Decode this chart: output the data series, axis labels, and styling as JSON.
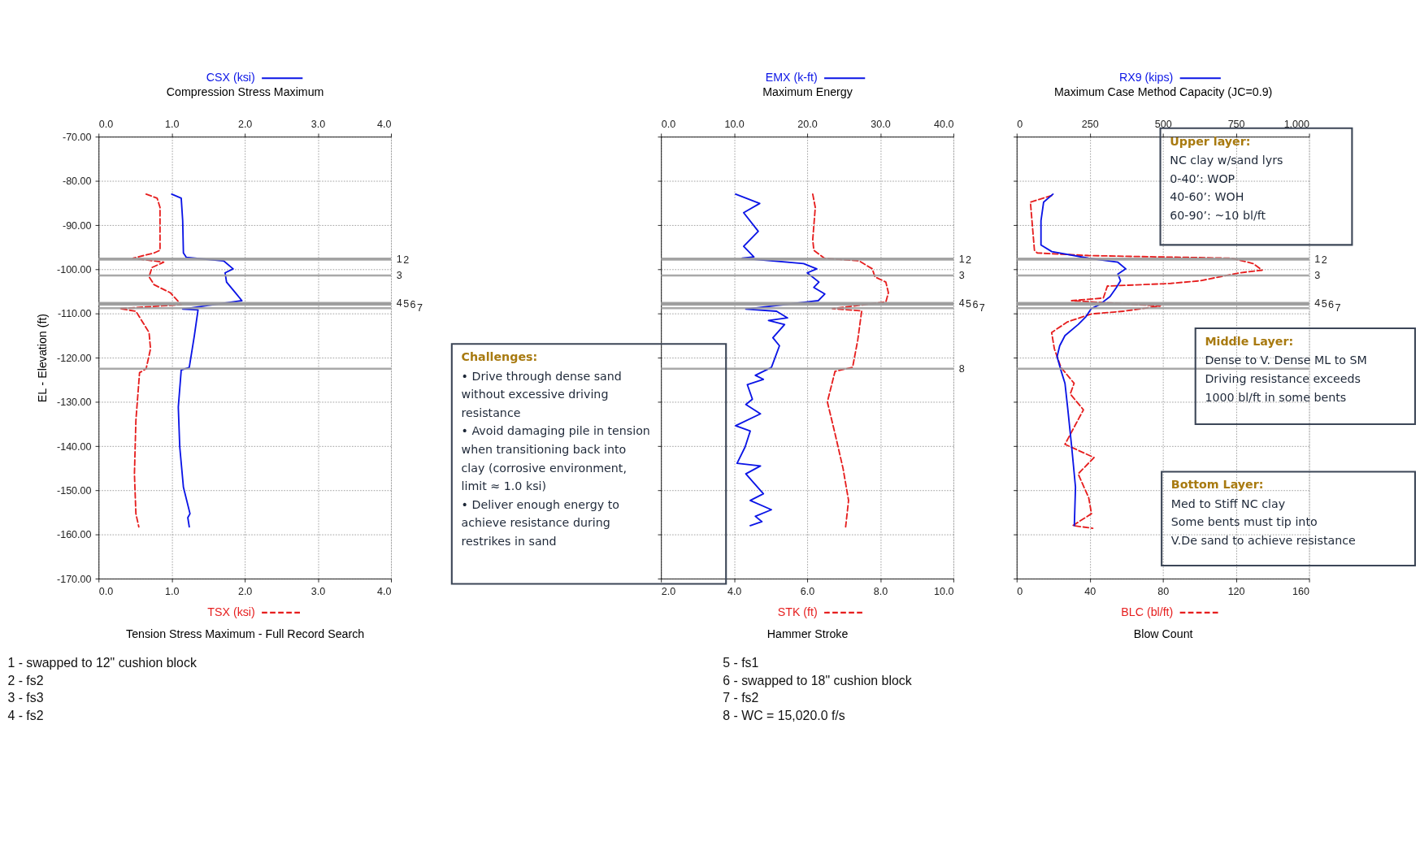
{
  "chart_data": [
    {
      "type": "line",
      "ylabel": "EL - Elevation (ft)",
      "xlabel": "Tension Stress Maximum - Full Record Search",
      "x2label": "Compression Stress Maximum",
      "xlim": [
        0,
        4
      ],
      "xticks": [
        {
          "value": 0,
          "label": "0.0"
        },
        {
          "value": 1,
          "label": "1.0"
        },
        {
          "value": 2,
          "label": "2.0"
        },
        {
          "value": 3,
          "label": "3.0"
        },
        {
          "value": 4,
          "label": "4.0"
        }
      ],
      "x2lim": [
        0,
        4
      ],
      "x2ticks": [
        {
          "value": 0,
          "label": "0.0"
        },
        {
          "value": 1,
          "label": "1.0"
        },
        {
          "value": 2,
          "label": "2.0"
        },
        {
          "value": 3,
          "label": "3.0"
        },
        {
          "value": 4,
          "label": "4.0"
        }
      ],
      "ylim": [
        -170,
        -70
      ],
      "yticks": [
        {
          "value": -70,
          "label": "-70.00"
        },
        {
          "value": -80,
          "label": "-80.00"
        },
        {
          "value": -90,
          "label": "-90.00"
        },
        {
          "value": -100,
          "label": "-100.00"
        },
        {
          "value": -110,
          "label": "-110.00"
        },
        {
          "value": -120,
          "label": "-120.00"
        },
        {
          "value": -130,
          "label": "-130.00"
        },
        {
          "value": -140,
          "label": "-140.00"
        },
        {
          "value": -150,
          "label": "-150.00"
        },
        {
          "value": -160,
          "label": "-160.00"
        },
        {
          "value": -170,
          "label": "-170.00"
        }
      ],
      "grid": true,
      "legend": "top",
      "marker": "none",
      "series": [
        {
          "name": "CSX (ksi)",
          "color": "#0a14e6",
          "axis": "x2",
          "line_style": "solid",
          "x": [
            1.0,
            1.13,
            1.15,
            1.16,
            1.2,
            1.71,
            1.84,
            1.73,
            1.75,
            1.87,
            1.96,
            1.15,
            1.36,
            1.31,
            1.24,
            1.13,
            1.09,
            1.11,
            1.16,
            1.25,
            1.22,
            1.24
          ],
          "values": [
            -83.0,
            -83.9,
            -89.0,
            -96.3,
            -97.3,
            -98.1,
            -99.9,
            -100.8,
            -102.9,
            -105.3,
            -107.1,
            -109.0,
            -109.2,
            -115.0,
            -122.2,
            -122.8,
            -131.2,
            -140.2,
            -149.3,
            -155.3,
            -156.2,
            -158.3
          ]
        },
        {
          "name": "TSX (ksi)",
          "color": "#e61e1e",
          "line_style": "dashed",
          "x": [
            0.65,
            0.8,
            0.84,
            0.84,
            0.76,
            0.47,
            0.89,
            0.73,
            0.69,
            0.76,
            0.98,
            1.13,
            0.29,
            0.51,
            0.69,
            0.71,
            0.65,
            0.56,
            0.51,
            0.49,
            0.51,
            0.55
          ],
          "values": [
            -83.0,
            -83.9,
            -86.0,
            -95.7,
            -96.3,
            -97.5,
            -98.4,
            -99.6,
            -101.7,
            -103.5,
            -105.3,
            -108.0,
            -108.9,
            -109.5,
            -114.3,
            -118.0,
            -122.5,
            -123.4,
            -134.2,
            -146.3,
            -155.3,
            -158.3
          ]
        }
      ],
      "ref_lines": [
        {
          "axis": "y",
          "value": -97.6
        },
        {
          "axis": "y",
          "value": -97.8
        },
        {
          "axis": "y",
          "value": -101.4
        },
        {
          "axis": "y",
          "value": -107.6
        },
        {
          "axis": "y",
          "value": -107.8
        },
        {
          "axis": "y",
          "value": -108.0
        },
        {
          "axis": "y",
          "value": -108.8
        },
        {
          "axis": "y",
          "value": -122.5
        }
      ],
      "annotations": [
        "1 - swapped to 12\" cushion block",
        "2 - fs2",
        "3 - fs3",
        "4 - fs2",
        {
          "text": "1",
          "x": 4,
          "y": -97.6
        },
        {
          "text": "2",
          "x": 4,
          "y": -97.8
        },
        {
          "text": "3",
          "x": 4,
          "y": -101.4
        },
        {
          "text": "4",
          "x": 4,
          "y": -107.6
        },
        {
          "text": "5",
          "x": 4,
          "y": -107.8
        },
        {
          "text": "6",
          "x": 4,
          "y": -108.0
        },
        {
          "text": "7",
          "x": 4,
          "y": -108.8
        }
      ]
    },
    {
      "type": "line",
      "xlabel": "Hammer Stroke",
      "x2label": "Maximum Energy",
      "xlim": [
        2,
        10
      ],
      "xticks": [
        {
          "value": 2,
          "label": "2.0"
        },
        {
          "value": 4,
          "label": "4.0"
        },
        {
          "value": 6,
          "label": "6.0"
        },
        {
          "value": 8,
          "label": "8.0"
        },
        {
          "value": 10,
          "label": "10.0"
        }
      ],
      "x2lim": [
        0,
        40
      ],
      "x2ticks": [
        {
          "value": 0,
          "label": "0.0"
        },
        {
          "value": 10,
          "label": "10.0"
        },
        {
          "value": 20,
          "label": "20.0"
        },
        {
          "value": 30,
          "label": "30.0"
        },
        {
          "value": 40,
          "label": "40.0"
        }
      ],
      "ylim": [
        -170,
        -70
      ],
      "yticks": [
        -70,
        -80,
        -90,
        -100,
        -110,
        -120,
        -130,
        -140,
        -150,
        -160,
        -170
      ],
      "tick_labels": "x",
      "grid": true,
      "legend": "top",
      "marker": "none",
      "series": [
        {
          "name": "EMX (k-ft)",
          "color": "#0a14e6",
          "axis": "x2",
          "line_style": "solid",
          "x": [
            10.2,
            13.5,
            11.3,
            13.3,
            11.3,
            12.7,
            11.1,
            19.5,
            21.3,
            20.0,
            21.6,
            20.9,
            22.4,
            21.5,
            11.6,
            15.8,
            17.3,
            14.7,
            16.9,
            15.3,
            16.2,
            15.1,
            12.9,
            14.0,
            11.8,
            12.5,
            11.6,
            13.6,
            10.2,
            12.2,
            11.5,
            10.4,
            13.6,
            11.6,
            14.0,
            12.2,
            15.1,
            12.9,
            13.8,
            12.2
          ],
          "values": [
            -83.0,
            -85.1,
            -87.2,
            -91.4,
            -94.8,
            -97.2,
            -97.5,
            -98.7,
            -99.9,
            -100.8,
            -102.9,
            -104.1,
            -105.6,
            -107.1,
            -109.0,
            -109.5,
            -111.0,
            -111.6,
            -112.5,
            -115.5,
            -117.3,
            -122.2,
            -124.0,
            -124.9,
            -126.1,
            -129.4,
            -130.6,
            -132.7,
            -135.4,
            -136.6,
            -140.2,
            -143.9,
            -144.5,
            -146.3,
            -150.8,
            -152.3,
            -154.4,
            -155.9,
            -157.1,
            -158.0
          ]
        },
        {
          "name": "STK (ft)",
          "color": "#e61e1e",
          "line_style": "dashed",
          "x": [
            6.15,
            6.22,
            6.15,
            6.18,
            6.47,
            7.42,
            7.78,
            7.85,
            8.15,
            8.22,
            8.15,
            6.69,
            7.49,
            7.38,
            7.24,
            6.76,
            6.55,
            6.76,
            6.98,
            7.13,
            7.05
          ],
          "values": [
            -83.0,
            -86.0,
            -93.3,
            -95.7,
            -97.5,
            -98.1,
            -99.9,
            -101.7,
            -102.9,
            -105.3,
            -107.4,
            -108.9,
            -109.4,
            -116.1,
            -122.2,
            -123.1,
            -130.0,
            -137.2,
            -145.1,
            -152.3,
            -158.3
          ]
        }
      ],
      "ref_lines": [
        {
          "axis": "y",
          "value": -97.6
        },
        {
          "axis": "y",
          "value": -97.8
        },
        {
          "axis": "y",
          "value": -101.4
        },
        {
          "axis": "y",
          "value": -107.6
        },
        {
          "axis": "y",
          "value": -107.8
        },
        {
          "axis": "y",
          "value": -108.0
        },
        {
          "axis": "y",
          "value": -108.8
        },
        {
          "axis": "y",
          "value": -122.5
        }
      ],
      "annotations": [
        {
          "text": "1",
          "x": 10,
          "y": -97.6
        },
        {
          "text": "2",
          "x": 10,
          "y": -97.8
        },
        {
          "text": "3",
          "x": 10,
          "y": -101.4
        },
        {
          "text": "4",
          "x": 10,
          "y": -107.6
        },
        {
          "text": "5",
          "x": 10,
          "y": -107.8
        },
        {
          "text": "6",
          "x": 10,
          "y": -108.0
        },
        {
          "text": "7",
          "x": 10,
          "y": -108.8
        },
        {
          "text": "8",
          "x": 10,
          "y": -122.5
        },
        "Challenges:\n• Drive through dense sand\n   without excessive driving\n   resistance\n• Avoid damaging pile in tension\n   when transitioning back into\n   clay (corrosive environment,\n   limit ≈ 1.0 ksi)\n• Deliver enough energy to\n   achieve resistance during\n   restrikes in sand",
        "5 - fs1",
        "6 - swapped to 18\" cushion block",
        "7 - fs2",
        "8 - WC = 15,020.0 f/s"
      ]
    },
    {
      "type": "line",
      "xlabel": "Blow Count",
      "x2label": "Maximum Case Method Capacity (JC=0.9)",
      "xlim": [
        0,
        160
      ],
      "xticks": [
        0,
        40,
        80,
        120,
        160
      ],
      "x2lim": [
        0,
        1000
      ],
      "x2ticks": [
        0,
        250,
        500,
        750,
        {
          "value": 1000,
          "label": "1,000"
        }
      ],
      "ylim": [
        -170,
        -70
      ],
      "yticks": [
        -70,
        -80,
        -90,
        -100,
        -110,
        -120,
        -130,
        -140,
        -150,
        -160,
        -170
      ],
      "tick_labels": "x",
      "grid": true,
      "legend": "top",
      "marker": "none",
      "series": [
        {
          "name": "RX9 (kips)",
          "color": "#0a14e6",
          "axis": "x2",
          "line_style": "solid",
          "x": [
            124,
            92,
            83,
            83,
            120,
            246,
            346,
            373,
            346,
            355,
            341,
            319,
            283,
            255,
            237,
            210,
            165,
            147,
            138,
            151,
            165,
            174,
            188,
            201,
            197
          ],
          "values": [
            -83.0,
            -84.8,
            -89.0,
            -94.5,
            -96.0,
            -97.5,
            -98.4,
            -99.9,
            -101.1,
            -102.6,
            -104.1,
            -106.2,
            -108.0,
            -108.9,
            -110.7,
            -112.5,
            -115.0,
            -117.3,
            -119.8,
            -122.8,
            -125.8,
            -131.2,
            -140.2,
            -149.3,
            -158.0
          ]
        },
        {
          "name": "BLC (bl/ft)",
          "color": "#e61e1e",
          "line_style": "dashed",
          "x": [
            19.1,
            7.5,
            9.7,
            11.2,
            39.4,
            117.7,
            129.3,
            134.3,
            122.0,
            100.3,
            84.3,
            49.6,
            47.4,
            30.0,
            78.6,
            58.3,
            40.9,
            27.8,
            19.1,
            20.6,
            24.2,
            31.4,
            29.3,
            36.5,
            26.4,
            42.3,
            33.6,
            39.4,
            40.9,
            30.7,
            41.6
          ],
          "values": [
            -83.3,
            -84.8,
            -95.7,
            -96.3,
            -96.9,
            -97.5,
            -98.7,
            -100.2,
            -100.8,
            -102.6,
            -103.2,
            -103.8,
            -106.5,
            -107.1,
            -108.3,
            -109.5,
            -110.1,
            -111.9,
            -114.3,
            -118.0,
            -122.2,
            -125.8,
            -128.2,
            -131.8,
            -139.6,
            -142.6,
            -146.3,
            -151.7,
            -155.3,
            -158.0,
            -158.6
          ]
        }
      ],
      "ref_lines": [
        {
          "axis": "y",
          "value": -97.6
        },
        {
          "axis": "y",
          "value": -97.8
        },
        {
          "axis": "y",
          "value": -101.4
        },
        {
          "axis": "y",
          "value": -107.6
        },
        {
          "axis": "y",
          "value": -107.8
        },
        {
          "axis": "y",
          "value": -108.0
        },
        {
          "axis": "y",
          "value": -108.8
        },
        {
          "axis": "y",
          "value": -122.5
        }
      ],
      "annotations": [
        {
          "text": "1",
          "x": 160,
          "y": -97.6
        },
        {
          "text": "2",
          "x": 160,
          "y": -97.8
        },
        {
          "text": "3",
          "x": 160,
          "y": -101.4
        },
        {
          "text": "4",
          "x": 160,
          "y": -107.6
        },
        {
          "text": "5",
          "x": 160,
          "y": -107.8
        },
        {
          "text": "6",
          "x": 160,
          "y": -108.0
        },
        {
          "text": "7",
          "x": 160,
          "y": -108.8
        },
        "Upper layer:\nNC clay w/sand lyrs\n  0-40’: WOP\n  40-60’: WOH\n  60-90’: ~10 bl/ft",
        "Middle Layer:\nDense to V. Dense ML to SM\n  Driving resistance exceeds\n  1000 bl/ft in some bents",
        "Bottom Layer:\nMed to Stiff NC clay\n  Some bents must tip into\n  V.De sand to achieve resistance"
      ]
    }
  ]
}
